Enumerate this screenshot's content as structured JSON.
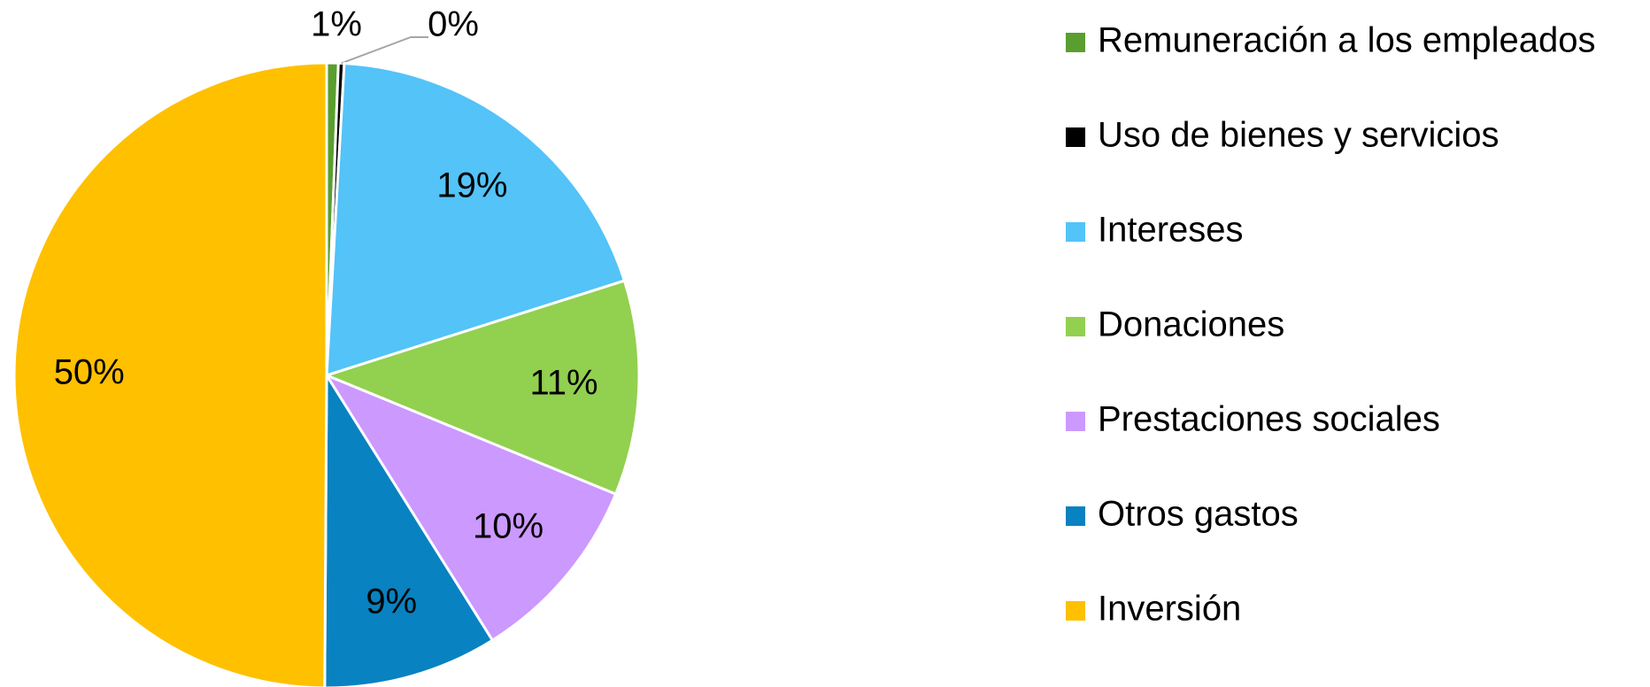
{
  "chart_data": {
    "type": "pie",
    "categories": [
      "Remuneración a los empleados",
      "Uso de bienes y servicios",
      "Intereses",
      "Donaciones",
      "Prestaciones sociales",
      "Otros gastos",
      "Inversión"
    ],
    "values": [
      0.6,
      0.3,
      19.2,
      11.1,
      9.9,
      9.0,
      49.9
    ],
    "value_labels": [
      "1%",
      "0%",
      "19%",
      "11%",
      "10%",
      "9%",
      "50%"
    ],
    "colors": [
      "#5a9e2f",
      "#000000",
      "#53c3f8",
      "#92d050",
      "#cc99ff",
      "#0882c0",
      "#ffc000"
    ],
    "legend": "right"
  }
}
